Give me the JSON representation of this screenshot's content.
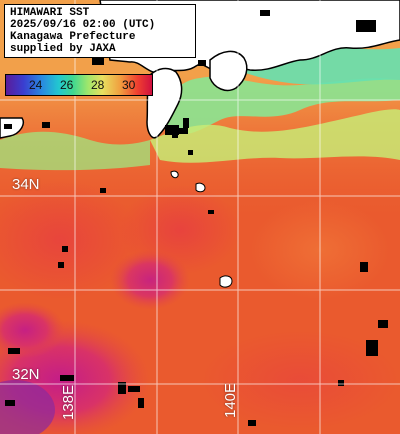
{
  "info": {
    "line1": "HIMAWARI SST",
    "line2": "2025/09/16 02:00 (UTC)",
    "line3": "Kanagawa Prefecture",
    "line4": "supplied by JAXA"
  },
  "legend": {
    "labels": [
      "24",
      "26",
      "28",
      "30"
    ]
  },
  "grid": {
    "latitudes": [
      "34N",
      "32N"
    ],
    "longitudes": [
      "138E",
      "140E"
    ]
  }
}
